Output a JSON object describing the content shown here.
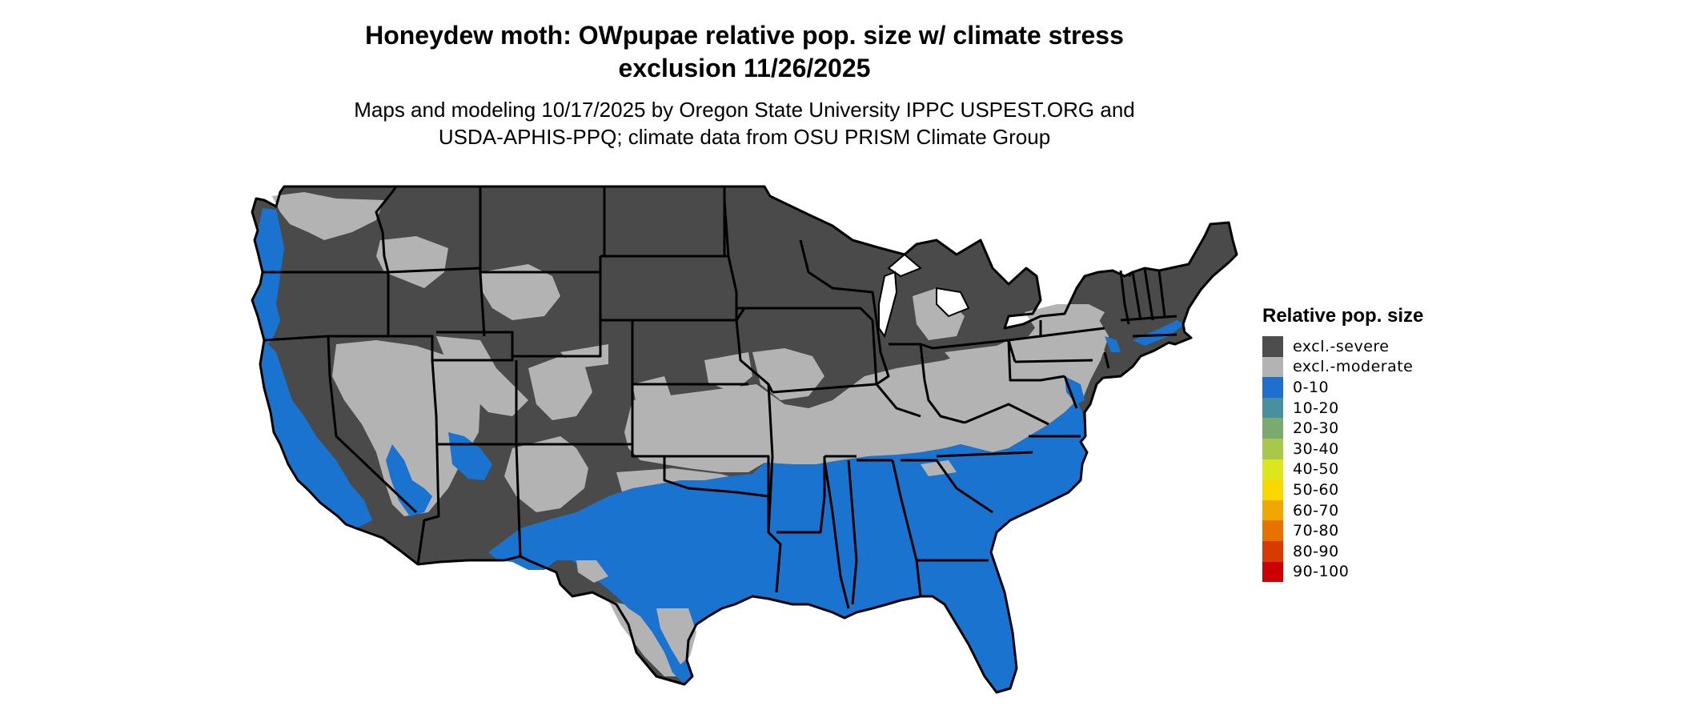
{
  "title_line1": "Honeydew moth: OWpupae relative pop. size w/ climate stress",
  "title_line2": "exclusion 11/26/2025",
  "subtitle_line1": "Maps and modeling 10/17/2025 by Oregon State University IPPC USPEST.ORG and",
  "subtitle_line2": "USDA-APHIS-PPQ; climate data from OSU PRISM Climate Group",
  "colors": {
    "severe": "#4a4a4a",
    "moderate": "#b3b3b3",
    "low": "#1a74cf",
    "border": "#000000"
  },
  "legend": {
    "title": "Relative pop. size",
    "items": [
      {
        "label": "excl.-severe",
        "color": "#4d4d4d"
      },
      {
        "label": "excl.-moderate",
        "color": "#b3b3b3"
      },
      {
        "label": "0-10",
        "color": "#1f6fd0"
      },
      {
        "label": "10-20",
        "color": "#4a8fa0"
      },
      {
        "label": "20-30",
        "color": "#7aaa70"
      },
      {
        "label": "30-40",
        "color": "#a9c84a"
      },
      {
        "label": "40-50",
        "color": "#dde51c"
      },
      {
        "label": "50-60",
        "color": "#f8d800"
      },
      {
        "label": "60-70",
        "color": "#f0a800"
      },
      {
        "label": "70-80",
        "color": "#e77200"
      },
      {
        "label": "80-90",
        "color": "#d83a00"
      },
      {
        "label": "90-100",
        "color": "#cc0000"
      }
    ]
  }
}
